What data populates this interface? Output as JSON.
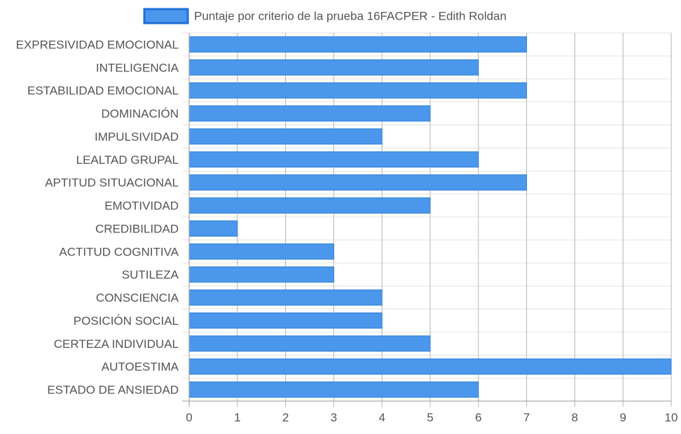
{
  "chart_data": {
    "type": "bar",
    "orientation": "horizontal",
    "categories": [
      "EXPRESIVIDAD EMOCIONAL",
      "INTELIGENCIA",
      "ESTABILIDAD EMOCIONAL",
      "DOMINACIÓN",
      "IMPULSIVIDAD",
      "LEALTAD GRUPAL",
      "APTITUD SITUACIONAL",
      "EMOTIVIDAD",
      "CREDIBILIDAD",
      "ACTITUD COGNITIVA",
      "SUTILEZA",
      "CONSCIENCIA",
      "POSICIÓN SOCIAL",
      "CERTEZA INDIVIDUAL",
      "AUTOESTIMA",
      "ESTADO DE ANSIEDAD"
    ],
    "series": [
      {
        "name": "Puntaje por criterio de la prueba 16FACPER - Edith Roldan",
        "values": [
          7,
          6,
          7,
          5,
          4,
          6,
          7,
          5,
          1,
          3,
          3,
          4,
          4,
          5,
          10,
          6
        ]
      }
    ],
    "xlim": [
      0,
      10
    ],
    "xticks": [
      "0",
      "1",
      "2",
      "3",
      "4",
      "5",
      "6",
      "7",
      "8",
      "9",
      "10"
    ],
    "grid": true,
    "legend_position": "top",
    "colors": {
      "bar_fill": "#4a97ec",
      "bar_stroke": "#2f7fd8",
      "legend_fill": "#4a97ec",
      "legend_stroke": "#1f6fd6",
      "grid_major": "#b5b5b5",
      "grid_minor": "#e3e3e3",
      "axis": "#999999",
      "label_text": "#555555"
    }
  }
}
